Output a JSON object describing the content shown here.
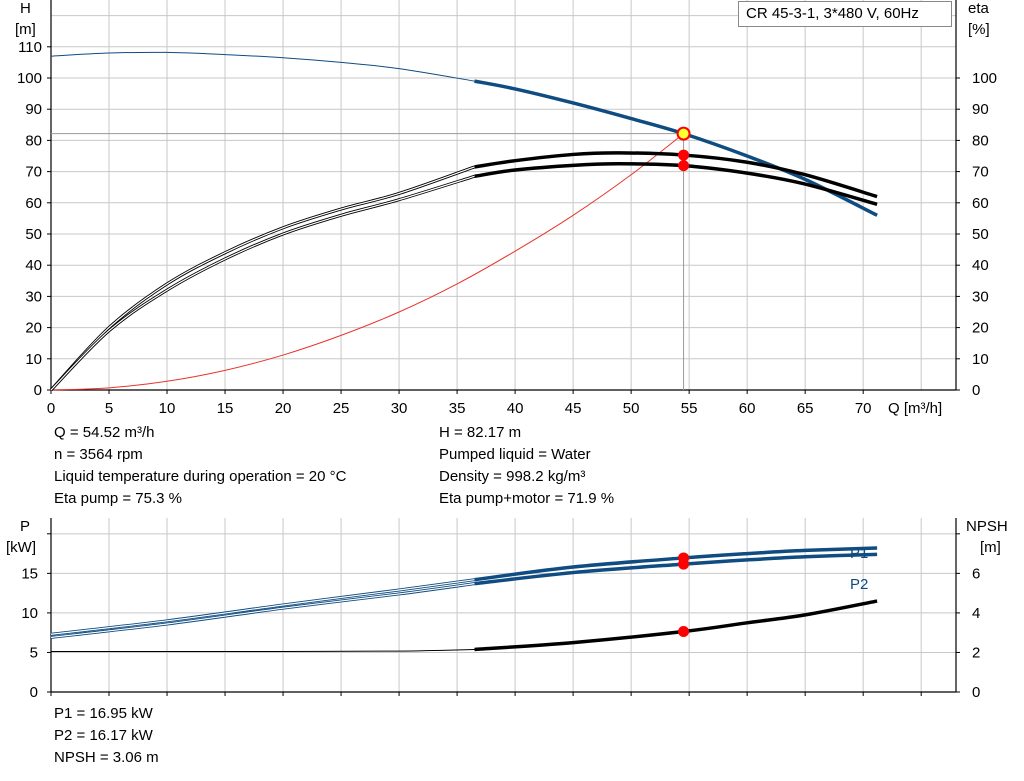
{
  "title": "CR 45-3-1, 3*480 V, 60Hz",
  "upper_info_left": [
    "Q = 54.52 m³/h",
    "n = 3564 rpm",
    "Liquid temperature during operation = 20 °C",
    "Eta pump = 75.3 %"
  ],
  "upper_info_right": [
    "H = 82.17 m",
    "Pumped liquid = Water",
    "Density = 998.2 kg/m³",
    "Eta pump+motor = 71.9 %"
  ],
  "lower_info": [
    "P1 = 16.95 kW",
    "P2 = 16.17 kW",
    "NPSH = 3.06 m"
  ],
  "colors": {
    "head": "#0f4c81",
    "efficiency": "#000000",
    "system_curve": "#e8342a",
    "duty_point": "#ff0000",
    "duty_point_head_fill": "#ffff33",
    "grid": "#c8c8c8",
    "power": "#0f4c81",
    "npsh": "#000000"
  },
  "chart_data": [
    {
      "type": "line",
      "name_text": "head-efficiency",
      "xlabel": "Q [m³/h]",
      "ylabel": "H",
      "ylabel_unit": "[m]",
      "y2label": "eta",
      "y2label_unit": "[%]",
      "xlim": [
        0,
        78
      ],
      "ylim": [
        0,
        125
      ],
      "y2lim": [
        0,
        125
      ],
      "x_ticks": [
        "0",
        "5",
        "10",
        "15",
        "20",
        "25",
        "30",
        "35",
        "40",
        "45",
        "50",
        "55",
        "60",
        "65",
        "70"
      ],
      "y_ticks": [
        "0",
        "10",
        "20",
        "30",
        "40",
        "50",
        "60",
        "70",
        "80",
        "90",
        "100",
        "110"
      ],
      "y2_ticks": [
        "0",
        "10",
        "20",
        "30",
        "40",
        "50",
        "60",
        "70",
        "80",
        "90",
        "100"
      ],
      "grid": true,
      "operating_range": [
        36.5,
        71.2
      ],
      "series": [
        {
          "key": "head",
          "axis": "left",
          "x": [
            0,
            5,
            10,
            15,
            20,
            25,
            30,
            36.5,
            40,
            45,
            50,
            54.52,
            60,
            65,
            71.2
          ],
          "y": [
            107,
            108,
            108.2,
            107.5,
            106.5,
            105,
            103,
            99,
            96.5,
            92,
            87,
            82.17,
            75,
            67.5,
            56
          ]
        },
        {
          "key": "eta_pump",
          "axis": "right",
          "x": [
            0,
            5,
            10,
            15,
            20,
            25,
            30,
            36.5,
            40,
            45,
            49,
            54.52,
            60,
            65,
            71.2
          ],
          "y": [
            0,
            20,
            34,
            44,
            52,
            58,
            63,
            71.5,
            73.5,
            75.5,
            76,
            75.3,
            73,
            69,
            62
          ]
        },
        {
          "key": "eta_pump_motor",
          "axis": "right",
          "x": [
            0,
            5,
            10,
            15,
            20,
            25,
            30,
            36.5,
            40,
            45,
            49,
            54.52,
            60,
            65,
            71.2
          ],
          "y": [
            0,
            19,
            32,
            42,
            50,
            56,
            61,
            68.5,
            70.5,
            72,
            72.5,
            71.9,
            69.5,
            66,
            59.5
          ]
        },
        {
          "key": "system_curve",
          "axis": "left",
          "x": [
            0,
            5,
            10,
            15,
            20,
            25,
            30,
            35,
            40,
            45,
            50,
            54.52
          ],
          "y": [
            0,
            0.7,
            2.8,
            6.3,
            11.2,
            17.5,
            25,
            34,
            44.5,
            56,
            69,
            82.17
          ]
        }
      ],
      "duty_point": {
        "x": 54.52,
        "head": 82.17,
        "eta_pump": 75.3,
        "eta_pump_motor": 71.9
      }
    },
    {
      "type": "line",
      "name_text": "power-npsh",
      "ylabel": "P",
      "ylabel_unit": "[kW]",
      "y2label": "NPSH",
      "y2label_unit": "[m]",
      "xlim": [
        0,
        78
      ],
      "ylim": [
        0,
        22
      ],
      "y2lim": [
        0,
        8.8
      ],
      "y_ticks": [
        "0",
        "5",
        "10",
        "15"
      ],
      "y2_ticks": [
        "0",
        "2",
        "4",
        "6"
      ],
      "grid": true,
      "operating_range": [
        36.5,
        71.2
      ],
      "series": [
        {
          "key": "P1",
          "name": "P1",
          "axis": "left",
          "x": [
            0,
            10,
            20,
            30,
            36.5,
            45,
            54.52,
            60,
            65,
            71.2
          ],
          "y": [
            7.3,
            9.0,
            11.0,
            12.9,
            14.2,
            15.8,
            16.95,
            17.5,
            17.9,
            18.2
          ]
        },
        {
          "key": "P2",
          "name": "P2",
          "axis": "left",
          "x": [
            0,
            10,
            20,
            30,
            36.5,
            45,
            54.52,
            60,
            65,
            71.2
          ],
          "y": [
            6.9,
            8.6,
            10.6,
            12.4,
            13.7,
            15.1,
            16.17,
            16.7,
            17.1,
            17.4
          ]
        },
        {
          "key": "NPSH",
          "axis": "right",
          "x": [
            0,
            10,
            20,
            30,
            36.5,
            45,
            54.52,
            60,
            65,
            71.2
          ],
          "y": [
            2.05,
            2.05,
            2.05,
            2.07,
            2.15,
            2.5,
            3.06,
            3.5,
            3.9,
            4.6
          ]
        }
      ],
      "duty_point": {
        "x": 54.52,
        "P1": 16.95,
        "P2": 16.17,
        "NPSH": 3.06
      }
    }
  ]
}
